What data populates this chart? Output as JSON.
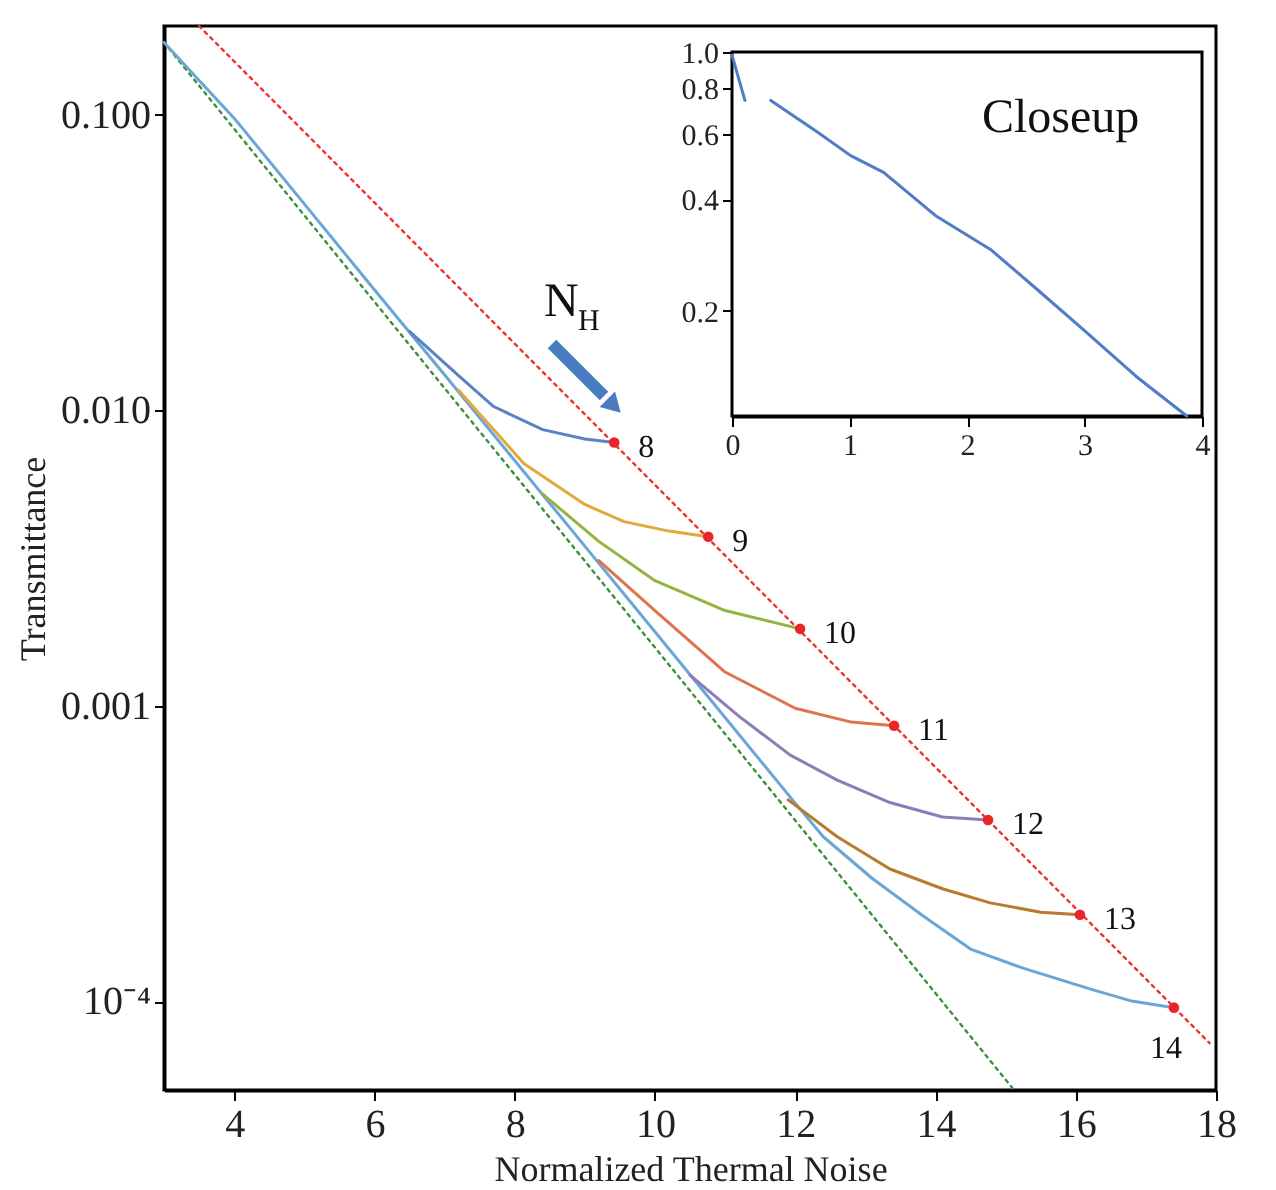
{
  "chart_data": [
    {
      "type": "line",
      "xlabel": "Normalized Thermal Noise",
      "ylabel": "Transmittance",
      "xlim": [
        3,
        18
      ],
      "ylim": [
        5e-05,
        0.2
      ],
      "xticks": [
        4,
        6,
        8,
        10,
        12,
        14,
        16,
        18
      ],
      "yticks": [
        {
          "value": 0.1,
          "label": "0.100"
        },
        {
          "value": 0.01,
          "label": "0.010"
        },
        {
          "value": 0.001,
          "label": "0.001"
        },
        {
          "value": 0.0001,
          "label": "10⁻⁴"
        }
      ],
      "log": "y",
      "grid": false,
      "line_style": "solid",
      "series": [
        {
          "line_style": "dotted",
          "color": "#f03030",
          "x": [
            3.5,
            17.91
          ],
          "values": [
            0.2,
            7.2e-05
          ]
        },
        {
          "line_style": "dotted",
          "color": "#3d8f3d",
          "x": [
            3,
            15.12
          ],
          "values": [
            0.176,
            5e-05
          ]
        },
        {
          "color": "#6aa6d6",
          "x": [
            3,
            4,
            5,
            6,
            7,
            8,
            9,
            10,
            11,
            12,
            12.4,
            13.1,
            13.84,
            14.5,
            15.26,
            16.2,
            16.8,
            17.4
          ],
          "values": [
            0.176,
            0.0975,
            0.05,
            0.0256,
            0.0132,
            0.00676,
            0.00347,
            0.00178,
            0.000912,
            0.000468,
            0.00036,
            0.00026,
            0.000193,
            0.00015,
            0.000129,
            0.00011,
            0.0001,
            9.5e-05
          ]
        },
        {
          "color": "#b97a2e",
          "x": [
            11.9,
            12.6,
            13.35,
            14.1,
            14.78,
            15.5,
            16.06
          ],
          "values": [
            0.00048,
            0.00036,
            0.00028,
            0.00024,
            0.000215,
            0.0002,
            0.000196
          ]
        },
        {
          "color": "#8e7cb8",
          "x": [
            10.5,
            11.2,
            11.93,
            12.6,
            13.35,
            14.1,
            14.75
          ],
          "values": [
            0.00127,
            0.00092,
            0.00068,
            0.00056,
            0.00047,
            0.00042,
            0.00041
          ]
        },
        {
          "color": "#e0734e",
          "x": [
            9.2,
            10,
            11,
            12,
            12.8,
            13.41
          ],
          "values": [
            0.0031,
            0.0021,
            0.0013,
            0.00098,
            0.00088,
            0.000855
          ]
        },
        {
          "color": "#93b43f",
          "x": [
            8.4,
            9.2,
            10,
            11,
            12.07
          ],
          "values": [
            0.0052,
            0.0036,
            0.00265,
            0.0021,
            0.00182
          ]
        },
        {
          "color": "#e2a93c",
          "x": [
            7.2,
            8.13,
            9,
            9.56,
            10.2,
            10.76
          ],
          "values": [
            0.0117,
            0.0066,
            0.0048,
            0.0042,
            0.0039,
            0.00373
          ]
        },
        {
          "color": "#5b82c4",
          "x": [
            6.5,
            7.2,
            7.7,
            8.4,
            9,
            9.42
          ],
          "values": [
            0.0185,
            0.0131,
            0.0103,
            0.0086,
            0.008,
            0.00778
          ]
        },
        {
          "type": "scatter",
          "marker": "circle",
          "color": "#e8262a",
          "x": [
            9.42,
            10.76,
            12.07,
            13.41,
            14.75,
            16.06,
            17.4
          ],
          "values": [
            0.00778,
            0.00373,
            0.00182,
            0.000855,
            0.00041,
            0.000196,
            9.5e-05
          ]
        }
      ],
      "annotations": [
        {
          "text": "8",
          "x": 9.42,
          "y": 0.00778
        },
        {
          "text": "9",
          "x": 10.76,
          "y": 0.00373
        },
        {
          "text": "10",
          "x": 12.07,
          "y": 0.00182
        },
        {
          "text": "11",
          "x": 13.41,
          "y": 0.000855
        },
        {
          "text": "12",
          "x": 14.75,
          "y": 0.00041
        },
        {
          "text": "13",
          "x": 16.06,
          "y": 0.000196
        },
        {
          "text": "14",
          "x": 17.4,
          "y": 9.5e-05
        },
        "N$_{H}$"
      ]
    },
    {
      "type": "line",
      "xlim": [
        0,
        4
      ],
      "ylim": [
        0.104,
        1.0
      ],
      "xticks": [
        0,
        1,
        2,
        3,
        4
      ],
      "yticks": [
        0.2,
        0.4,
        0.6,
        0.8,
        {
          "value": 1.0,
          "label": "1.0"
        }
      ],
      "log": "y",
      "grid": false,
      "line_style": "solid",
      "series": [
        {
          "color": "#4f7cc4",
          "x": [
            0,
            0.11,
            0.2,
            0.33,
            0.72,
            1.01,
            1.29,
            1.74,
            2.2,
            2.6,
            2.99,
            3.44,
            3.87
          ],
          "values": [
            0.98,
            0.74,
            null,
            0.74,
            0.61,
            0.525,
            0.473,
            0.36,
            0.293,
            0.228,
            0.178,
            0.133,
            0.104
          ]
        }
      ],
      "annotations": [
        "Closeup"
      ]
    }
  ]
}
